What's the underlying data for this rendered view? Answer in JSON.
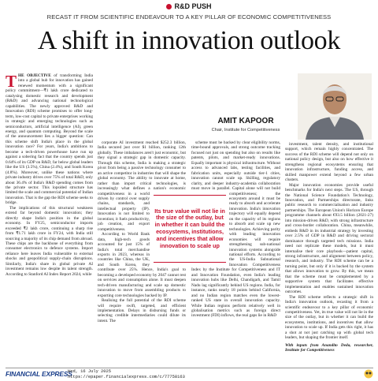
{
  "header": {
    "kicker": "R&D PUSH",
    "deck": "RECAST IT FROM SCIENTIFIC ENDEAVOUR TO A KEY PILLAR OF ECONOMIC COMPETITIVENESS",
    "title": "A shift in innovation outlook"
  },
  "author": {
    "name": "AMIT KAPOOR",
    "role": "Chair, Institute for Competitiveness"
  },
  "pull_quote": "Its true value will not lie in the size of the outlay, but in whether it can build the ecosystems, institutions, and incentives that allow innovation to scale up",
  "body": {
    "lead": "THE OBJECTIVE",
    "columns": [
      [
        " of transforming India into a global hub for innovation has gained renewed momentum with a significant policy commitment—₹1 lakh crore dedicated to catalysing domestic research and development (R&D) and advancing national technological capabilities. The newly approved R&D and Innovation (RDI) scheme promises to offer long-term, low-cost capital to private enterprises working in strategic and emerging technologies such as semiconductors, artificial intelligence (AI), green energy, and quantum computing. Beyond the scale of the announcement lies a bigger question: Can this scheme shift India's place in the global innovation race? For years, India's ambitions to become a tech-driven powerhouse have run up against a sobering fact that the country spends just 0.64% of its GDP on R&D, far below global leaders like the US (3.5%), China (2.4%), and South Korea (4.8%). Moreover, unlike these nations where private industry drives over 75% of total R&D, only about 36.4% of India's R&D spending comes from the private sector. This lopsided structure has limited the scale and commercial potential of Indian innovation. That is the gap the RDI scheme seeks to bridge.",
        "The implications of this structural weakness extend far beyond domestic innovation; they directly shape India's position in the global economy. In FY25, semiconductor imports exceeded ₹2 lakh crore, continuing a sharp rise from ₹1.71 lakh crore in FY24, with India still sourcing a majority of its chip demand from abroad. These chips are the backbone of everything from consumer electronics to defence systems. Import reliance here leaves India vulnerable to external shocks and geopolitical supply-chain disruptions. Similarly, India's share in global private AI investment remains low despite its talent strength. According to Stanford AI Index Report 2024, while"
      ],
      [
        "corporate AI investment reached $252.3 billion, India secured just over $1 billion, ranking 12th globally. These imbalances aren't just economic, but they signal a strategic gap in domestic capacity. Through this scheme, India is making a strategic pivot from being a passive technology consumer to an active competitor in industries that will shape the global economy. The ability to innovate at home, rather than import critical technologies, is increasingly what defines a nation's economic competitiveness in a world driven by control over supply chains, standards, and intellectual property (IP). Innovation is not limited to invention; it fuels productivity, job creation, and export competitiveness.",
        "According to World Bank data, high-tech goods accounted for just 15% of India's total merchandise exports in 2023, whereas in countries like China, the UK, and South Korea, they contribute over 25%. Hence, India's goal to becoming a developed economy by 2047 cannot rest on services and consumption alone. It must deepen tech-driven manufacturing and scale up domestic innovation to move from assembling products to exporting core technologies backed by IP.",
        "Realising the full potential of the RDI scheme will require swift, targeted, and efficient implementation. Delays in disbursing funds or selecting credible intermediaries could dilute its intent. The"
      ],
      [
        "scheme must be backed by clear eligibility norms, time-bound approvals, and strong outcome tracking focused not just on spending but also on results like patents, pilots, and market-ready innovations. Equally important is physical infrastructure. Without access to advanced labs, testing facilities, and fabrication units, especially outside tier-1 cities, innovation cannot scale up. Skilling, regulatory clarity, and deeper industry-academia collaboration must move in parallel. Capital alone will not build competitiveness; the ecosystem around it must be ready to absorb and accelerate innovation. India's innovation trajectory will equally depend on the capacity of its regions to absorb and scale up new technologies. Achieving parity with leading innovation economies will require strengthening sub-national innovation systems alongside national efforts. According to the US-India Subnational Innovation Competitiveness Index by the Institute for Competitiveness and IT and Innovation Foundation, even India's leading innovation hubs like Delhi, Chandigarh, and Tamil Nadu lag significantly behind US regions. India, for instance, ranks nearly 18 points behind California, and no Indian region matches even the lowest-ranked US state in overall innovation capacity. While Indian regions perform relatively well in globalisation metrics such as foreign direct investment (FDI) inflows, the real gaps lie in R&D"
      ],
      [
        "investment, talent density, and institutional support, which remain highly concentrated. The success of the RDI scheme will depend not only on national policy design, but also on how effective it strengthens regional ecosystems ensuring that innovation infrastructure, funding access, and skilled manpower extend beyond a few urban clusters.",
        "Major innovation economies provide useful benchmarks for India's next steps. The US, through the National Science Foundation's Technology, Innovation, and Partnerships directorate, links public research to commercialisation and industry partnerships. The European Union's Horizon Europe programme channels about €93.5 billion (2021-27) into mission-driven R&D, with strong infrastructure and cross-border collaboration. China, meanwhile, embeds R&D in its industrial strategy by investing over 2.5% of GDP in R&D and driving sectoral dominance through targeted tech missions. India need not replicate these models, but it must internalise their core playbook—patient capital, strong infrastructure, and alignment between policy, research, and industry. The RDI scheme can be a turning point, but only if it is backed by the system that allows innovation to grow. By this, we mean that the scheme must be complemented by a supportive system that facilitates effective implementation and enables sustained innovation outcomes.",
        "The RDI scheme reflects a strategic shift in India's innovation outlook, recasting it from a scientific endeavour to a key pillar of economic competitiveness. Yet, its true value will not lie in the size of the outlay, but in whether it can build the ecosystems, institutions, and incentives that allow innovation to scale up. If India gets this right, it has a shot at not just catching up with global tech leaders, but shaping the frontier itself."
      ]
    ],
    "credit": "With inputs from Anandito Deda, researcher, Institute for Competitiveness"
  },
  "footer": {
    "publication": "FINANCIAL EXPRESS",
    "date": "Wed, 16 July 2025",
    "url": "https://epaper.financialexpress.com/c/77758163"
  }
}
